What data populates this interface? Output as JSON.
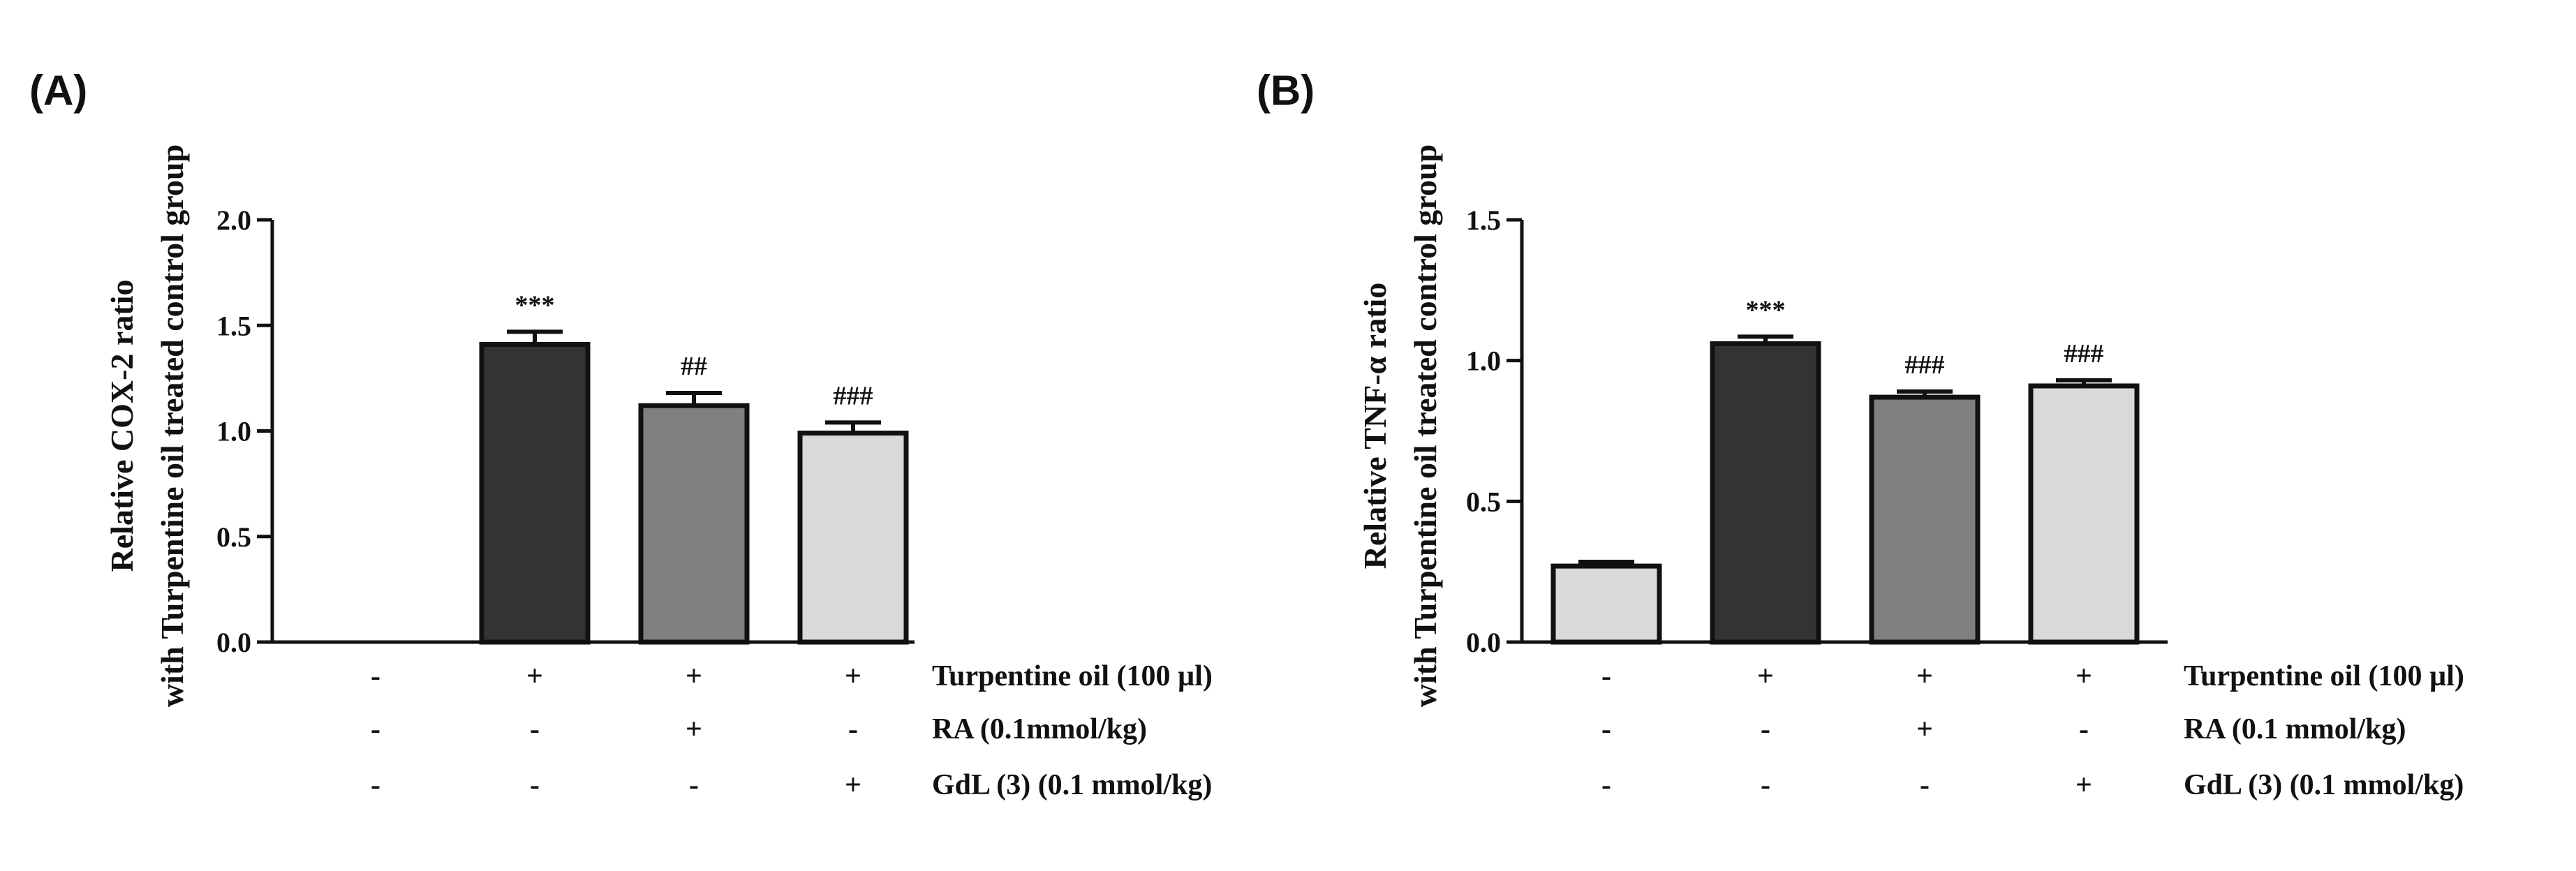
{
  "chart_data": [
    {
      "type": "bar",
      "panel_label": "(A)",
      "ylabel_line1": "Relative COX-2 ratio",
      "ylabel_line2": "with Turpentine oil treated control group",
      "ylim": [
        0,
        2.0
      ],
      "yticks": [
        "0.0",
        "0.5",
        "1.0",
        "1.5",
        "2.0"
      ],
      "values": [
        0.0,
        1.41,
        1.12,
        0.99
      ],
      "errors": [
        0.0,
        0.06,
        0.06,
        0.05
      ],
      "bar_colors": [
        "#ffffff",
        "#333333",
        "#808080",
        "#d9d9d9"
      ],
      "significance": [
        "",
        "***",
        "##",
        "###"
      ],
      "treatments": [
        {
          "name": "Turpentine oil (100 µl)",
          "signs": [
            "-",
            "+",
            "+",
            "+"
          ]
        },
        {
          "name": "RA (0.1mmol/kg)",
          "signs": [
            "-",
            "-",
            "+",
            "-"
          ]
        },
        {
          "name": "GdL (3) (0.1 mmol/kg)",
          "signs": [
            "-",
            "-",
            "-",
            "+"
          ]
        }
      ]
    },
    {
      "type": "bar",
      "panel_label": "(B)",
      "ylabel_line1": "Relative TNF-α ratio",
      "ylabel_line2": "with Turpentine oil treated control group",
      "ylim": [
        0,
        1.5
      ],
      "yticks": [
        "0.0",
        "0.5",
        "1.0",
        "1.5"
      ],
      "values": [
        0.27,
        1.06,
        0.87,
        0.91
      ],
      "errors": [
        0.015,
        0.025,
        0.02,
        0.02
      ],
      "bar_colors": [
        "#d9d9d9",
        "#333333",
        "#808080",
        "#d9d9d9"
      ],
      "significance": [
        "",
        "***",
        "###",
        "###"
      ],
      "treatments": [
        {
          "name": "Turpentine oil (100 µl)",
          "signs": [
            "-",
            "+",
            "+",
            "+"
          ]
        },
        {
          "name": "RA (0.1 mmol/kg)",
          "signs": [
            "-",
            "-",
            "+",
            "-"
          ]
        },
        {
          "name": "GdL (3) (0.1 mmol/kg)",
          "signs": [
            "-",
            "-",
            "-",
            "+"
          ]
        }
      ]
    }
  ]
}
